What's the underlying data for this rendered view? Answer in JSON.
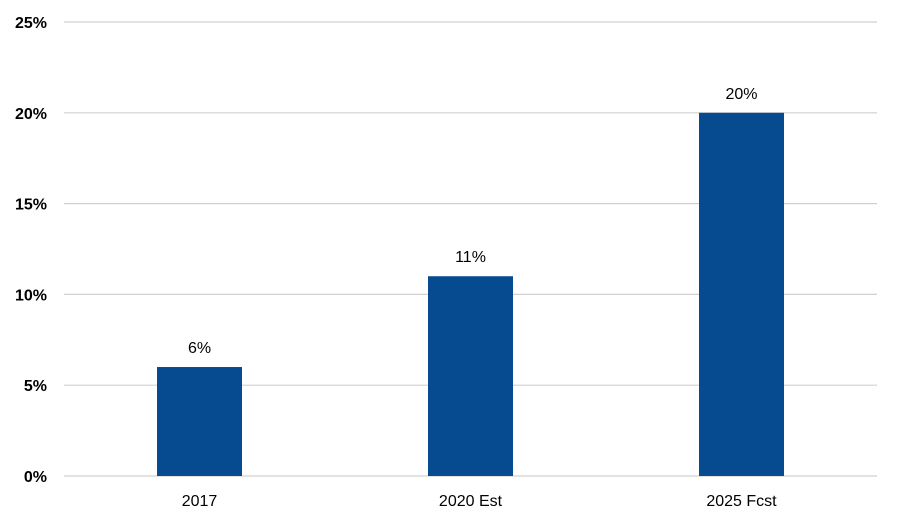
{
  "chart_data": {
    "type": "bar",
    "categories": [
      "2017",
      "2020 Est",
      "2025 Fcst"
    ],
    "values": [
      6,
      11,
      20
    ],
    "data_labels": [
      "6%",
      "11%",
      "20%"
    ],
    "ylim": [
      0,
      25
    ],
    "yticks": [
      0,
      5,
      10,
      15,
      20,
      25
    ],
    "ytick_labels": [
      "0%",
      "5%",
      "10%",
      "15%",
      "20%",
      "25%"
    ],
    "grid": true,
    "bar_color": "#064a8f"
  }
}
